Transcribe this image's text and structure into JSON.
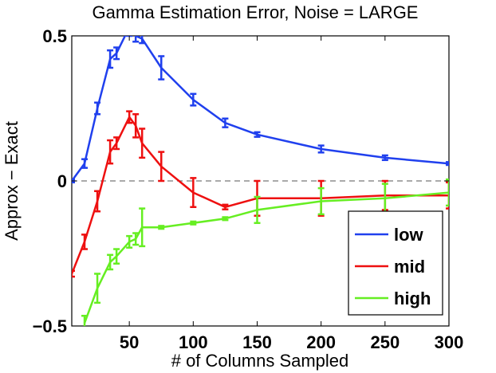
{
  "chart_data": {
    "type": "line",
    "title": "Gamma Estimation Error, Noise = LARGE",
    "xlabel": "# of Columns Sampled",
    "ylabel": "Approx − Exact",
    "xlim": [
      5,
      300
    ],
    "ylim": [
      -0.5,
      0.5
    ],
    "xticks": [
      50,
      100,
      150,
      200,
      250,
      300
    ],
    "xtick_labels": [
      "50",
      "100",
      "150",
      "200",
      "250",
      "300"
    ],
    "yticks": [
      -0.5,
      0,
      0.5
    ],
    "ytick_labels": [
      "−0.5",
      "0",
      "0.5"
    ],
    "reference_line": 0,
    "legend_location": "bottom-right",
    "series": [
      {
        "name": "low",
        "color": "#2040ee",
        "x": [
          5,
          15,
          25,
          35,
          40,
          50,
          55,
          60,
          75,
          100,
          125,
          150,
          200,
          250,
          300
        ],
        "y": [
          0.0,
          0.06,
          0.25,
          0.42,
          0.44,
          0.53,
          0.5,
          0.49,
          0.39,
          0.28,
          0.2,
          0.16,
          0.11,
          0.08,
          0.06
        ],
        "err": [
          0.005,
          0.015,
          0.02,
          0.03,
          0.02,
          0.03,
          0.02,
          0.015,
          0.04,
          0.02,
          0.015,
          0.008,
          0.012,
          0.008,
          0.005
        ]
      },
      {
        "name": "mid",
        "color": "#ee1010",
        "x": [
          5,
          15,
          25,
          35,
          40,
          50,
          55,
          60,
          75,
          100,
          125,
          150,
          200,
          250,
          300
        ],
        "y": [
          -0.32,
          -0.21,
          -0.07,
          0.1,
          0.13,
          0.22,
          0.19,
          0.13,
          0.05,
          -0.04,
          -0.09,
          -0.06,
          -0.06,
          -0.05,
          -0.05
        ],
        "err": [
          0.01,
          0.025,
          0.035,
          0.04,
          0.02,
          0.02,
          0.04,
          0.05,
          0.05,
          0.05,
          0.008,
          0.06,
          0.06,
          0.05,
          0.045
        ]
      },
      {
        "name": "high",
        "color": "#66ee22",
        "x": [
          15,
          25,
          35,
          40,
          50,
          55,
          60,
          75,
          100,
          125,
          150,
          200,
          250,
          300
        ],
        "y": [
          -0.49,
          -0.37,
          -0.28,
          -0.26,
          -0.21,
          -0.2,
          -0.16,
          -0.16,
          -0.145,
          -0.13,
          -0.1,
          -0.07,
          -0.06,
          -0.04
        ],
        "err": [
          0.025,
          0.05,
          0.025,
          0.025,
          0.02,
          0.02,
          0.065,
          0.005,
          0.005,
          0.005,
          0.045,
          0.045,
          0.05,
          0.045
        ]
      }
    ]
  }
}
